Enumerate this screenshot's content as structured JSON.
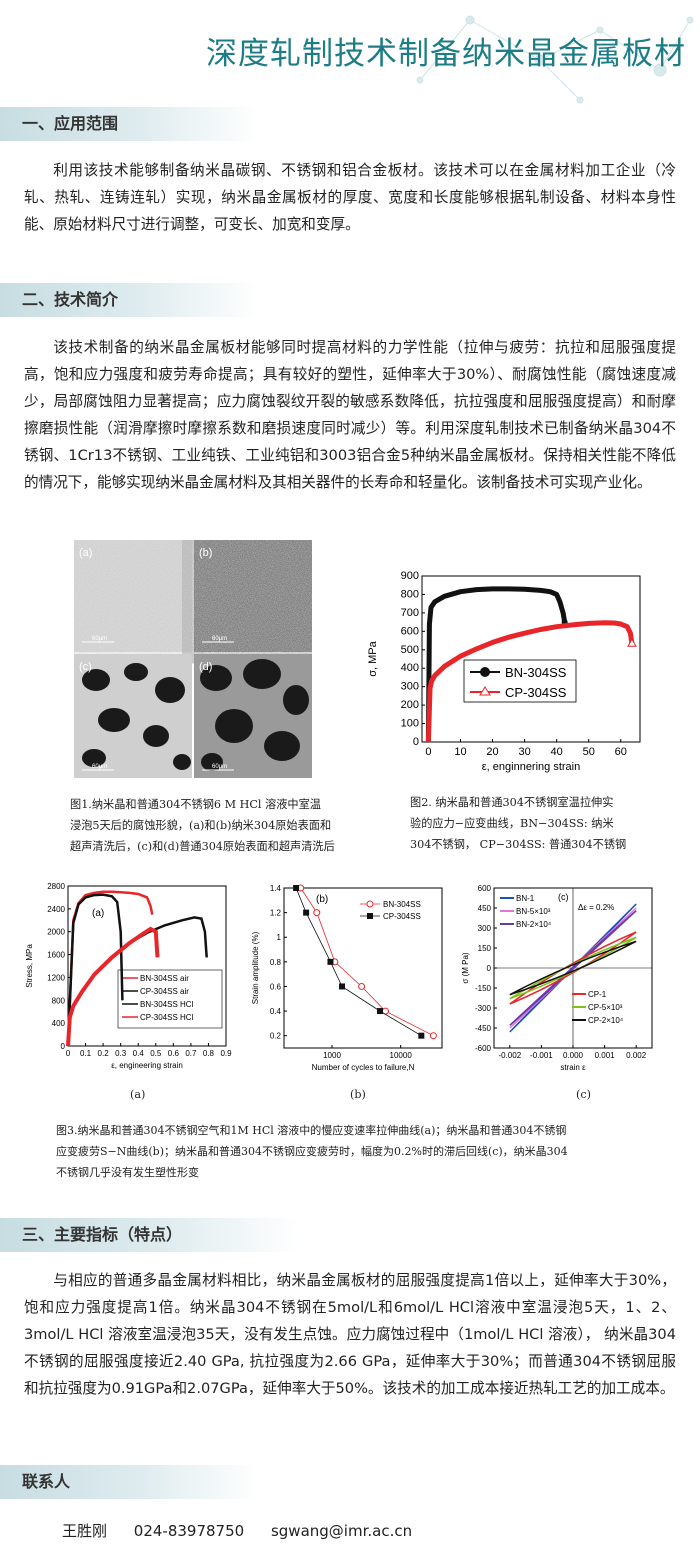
{
  "title": "深度轧制技术制备纳米晶金属板材",
  "sections": [
    {
      "heading": "一、应用范围",
      "text": "利用该技术能够制备纳米晶碳钢、不锈钢和铝合金板材。该技术可以在金属材料加工企业（冷轧、热轧、连铸连轧）实现，纳米晶金属板材的厚度、宽度和长度能够根据轧制设备、材料本身性能、原始材料尺寸进行调整，可变长、加宽和变厚。"
    },
    {
      "heading": "二、技术简介",
      "text": "该技术制备的纳米晶金属板材能够同时提高材料的力学性能（拉伸与疲劳：抗拉和屈服强度提高，饱和应力强度和疲劳寿命提高；具有较好的塑性，延伸率大于30%）、耐腐蚀性能（腐蚀速度减少，局部腐蚀阻力显著提高；应力腐蚀裂纹开裂的敏感系数降低，抗拉强度和屈服强度提高）和耐摩擦磨损性能（润滑摩擦时摩擦系数和磨损速度同时减少）等。利用深度轧制技术已制备纳米晶304不锈钢、1Cr13不锈钢、工业纯铁、工业纯铝和3003铝合金5种纳米晶金属板材。保持相关性能不降低的情况下，能够实现纳米晶金属材料及其相关器件的长寿命和轻量化。该制备技术可实现产业化。"
    },
    {
      "heading": "三、主要指标（特点）",
      "text": "与相应的普通多晶金属材料相比，纳米晶金属板材的屈服强度提高1倍以上，延伸率大于30%，饱和应力强度提高1倍。纳米晶304不锈钢在5mol/L和6mol/L HCl溶液中室温浸泡5天，1、2、3mol/L HCl 溶液室温浸泡35天，没有发生点蚀。应力腐蚀过程中（1mol/L HCl 溶液）， 纳米晶304不锈钢的屈服强度接近2.40 GPa, 抗拉强度为2.66 GPa，延伸率大于30%；而普通304不锈钢屈服和抗拉强度为0.91GPa和2.07GPa，延伸率大于50%。该技术的加工成本接近热轧工艺的加工成本。"
    },
    {
      "heading": "联系人"
    }
  ],
  "contact": {
    "name": "王胜刚",
    "phone": "024-83978750",
    "email": "sgwang@imr.ac.cn"
  },
  "figures": {
    "fig1": {
      "panel_labels": [
        "(a)",
        "(b)",
        "(c)",
        "(d)"
      ],
      "scale_label": "60μm",
      "caption": [
        "图1.纳米晶和普通304不锈钢6 M HCl 溶液中室温",
        "浸泡5天后的腐蚀形貌，(a)和(b)纳米304原始表面和",
        "超声清洗后，(c)和(d)普通304原始表面和超声清洗后"
      ]
    },
    "fig2_caption": [
      "图2. 纳米晶和普通304不锈钢室温拉伸实",
      "验的应力−应变曲线，BN−304SS: 纳米",
      "304不锈钢， CP−304SS: 普通304不锈钢"
    ],
    "fig3_caption": [
      "图3.纳米晶和普通304不锈钢空气和1M HCl 溶液中的慢应变速率拉伸曲线(a)；纳米晶和普通304不锈钢",
      "应变疲劳S−N曲线(b)；纳米晶和普通304不锈钢应变疲劳时，幅度为0.2%时的滞后回线(c)，纳米晶304",
      "不锈钢几乎没有发生塑性形变"
    ],
    "sublabels": [
      "(a)",
      "(b)",
      "(c)"
    ]
  },
  "colors": {
    "accent": "#1d7d86",
    "red": "#e8262a",
    "black": "#111111"
  },
  "chart_data": [
    {
      "type": "line",
      "xlabel": "ε, enginnering strain",
      "ylabel": "σ, MPa",
      "xlim": [
        -2,
        66
      ],
      "ylim": [
        0,
        900
      ],
      "xticks": [
        0,
        10,
        20,
        30,
        40,
        50,
        60
      ],
      "yticks": [
        0,
        100,
        200,
        300,
        400,
        500,
        600,
        700,
        800,
        900
      ],
      "legend_position": "center-right",
      "series": [
        {
          "name": "BN-304SS",
          "color": "#111111",
          "marker": "circle",
          "x": [
            0,
            0.3,
            0.8,
            2,
            5,
            10,
            15,
            20,
            25,
            30,
            35,
            38,
            40,
            41,
            42,
            42.5
          ],
          "y": [
            0,
            640,
            730,
            760,
            790,
            815,
            826,
            830,
            830,
            828,
            822,
            815,
            800,
            760,
            700,
            650
          ]
        },
        {
          "name": "CP-304SS",
          "color": "#e8262a",
          "marker": "triangle",
          "x": [
            0,
            0.5,
            1,
            2,
            5,
            10,
            15,
            20,
            25,
            30,
            35,
            40,
            45,
            50,
            55,
            58,
            60,
            62,
            63,
            63.5
          ],
          "y": [
            0,
            290,
            330,
            360,
            410,
            465,
            505,
            540,
            568,
            590,
            610,
            625,
            635,
            643,
            646,
            645,
            640,
            625,
            590,
            530
          ]
        }
      ]
    },
    {
      "type": "line",
      "title": "(a)",
      "xlabel": "ε, engineering strain",
      "ylabel": "Stress, MPa",
      "xlim": [
        0,
        0.9
      ],
      "ylim": [
        0,
        2800
      ],
      "xticks": [
        0.0,
        0.1,
        0.2,
        0.3,
        0.4,
        0.5,
        0.6,
        0.7,
        0.8,
        0.9
      ],
      "yticks": [
        0,
        400,
        800,
        1200,
        1600,
        2000,
        2400,
        2800
      ],
      "legend_position": "bottom-right",
      "series": [
        {
          "name": "BN-304SS air",
          "color": "#e8262a",
          "x": [
            0,
            0.03,
            0.06,
            0.1,
            0.15,
            0.2,
            0.25,
            0.3,
            0.35,
            0.4,
            0.45,
            0.47,
            0.48
          ],
          "y": [
            0,
            2200,
            2500,
            2640,
            2680,
            2700,
            2700,
            2690,
            2680,
            2660,
            2600,
            2450,
            2300
          ]
        },
        {
          "name": "CP-304SS air",
          "color": "#111111",
          "x": [
            0,
            0.01,
            0.03,
            0.08,
            0.15,
            0.25,
            0.35,
            0.45,
            0.55,
            0.65,
            0.72,
            0.76,
            0.78,
            0.79
          ],
          "y": [
            0,
            500,
            700,
            950,
            1250,
            1550,
            1800,
            1980,
            2110,
            2200,
            2250,
            2230,
            2000,
            1550
          ]
        },
        {
          "name": "BN-304SS HCl",
          "color": "#111111",
          "x": [
            0,
            0.03,
            0.06,
            0.1,
            0.15,
            0.2,
            0.25,
            0.28,
            0.3,
            0.31
          ],
          "y": [
            0,
            2150,
            2480,
            2600,
            2640,
            2650,
            2620,
            2520,
            2000,
            800
          ]
        },
        {
          "name": "CP-304SS HCl",
          "color": "#e8262a",
          "x": [
            0,
            0.01,
            0.03,
            0.08,
            0.15,
            0.25,
            0.35,
            0.42,
            0.47,
            0.5,
            0.51
          ],
          "y": [
            0,
            500,
            700,
            950,
            1250,
            1550,
            1800,
            1950,
            2050,
            2000,
            1550
          ]
        }
      ]
    },
    {
      "type": "scatter",
      "title": "(b)",
      "xlabel": "Number of cycles to failure,N",
      "ylabel": "Strain amplitude (%)",
      "xscale": "log",
      "xlim": [
        200,
        40000
      ],
      "ylim": [
        0.1,
        1.4
      ],
      "xticks": [
        1000,
        10000
      ],
      "xticklabels": [
        "1000",
        "10000"
      ],
      "yticks": [
        0.2,
        0.4,
        0.6,
        0.8,
        1.0,
        1.2,
        1.4
      ],
      "legend_position": "top-right",
      "series": [
        {
          "name": "BN-304SS",
          "color": "#e8262a",
          "marker": "open-circle",
          "x": [
            350,
            600,
            1100,
            2700,
            6000,
            30000
          ],
          "y": [
            1.4,
            1.2,
            0.8,
            0.6,
            0.4,
            0.2
          ]
        },
        {
          "name": "CP-304SS",
          "color": "#111111",
          "marker": "filled-square",
          "x": [
            300,
            420,
            950,
            1400,
            5000,
            20000
          ],
          "y": [
            1.4,
            1.2,
            0.8,
            0.6,
            0.4,
            0.2
          ]
        }
      ]
    },
    {
      "type": "line",
      "title": "(c)",
      "annotation": "Δε = 0.2%",
      "xlabel": "strain ε",
      "ylabel": "σ (M Pa)",
      "xlim": [
        -0.0025,
        0.0025
      ],
      "ylim": [
        -600,
        600
      ],
      "xticks": [
        -0.002,
        -0.001,
        0.0,
        0.001,
        0.002
      ],
      "xticklabels": [
        "-0.002",
        "-0.001",
        "0.000",
        "0.001",
        "0.002"
      ],
      "yticks": [
        -600,
        -450,
        -300,
        -150,
        0,
        150,
        300,
        450,
        600
      ],
      "legend_position": "top-left and bottom-right",
      "series": [
        {
          "name": "BN-1",
          "color": "#1f4fbf",
          "amplitude": 480,
          "loop_width": 10
        },
        {
          "name": "BN-5×10³",
          "color": "#e07ad0",
          "amplitude": 450,
          "loop_width": 12
        },
        {
          "name": "BN-2×10⁴",
          "color": "#6a3aa8",
          "amplitude": 430,
          "loop_width": 14
        },
        {
          "name": "CP-1",
          "color": "#e8262a",
          "amplitude": 270,
          "loop_width": 70
        },
        {
          "name": "CP-5×10³",
          "color": "#7cc218",
          "amplitude": 230,
          "loop_width": 55
        },
        {
          "name": "CP-2×10⁴",
          "color": "#111111",
          "amplitude": 200,
          "loop_width": 48
        }
      ]
    }
  ]
}
